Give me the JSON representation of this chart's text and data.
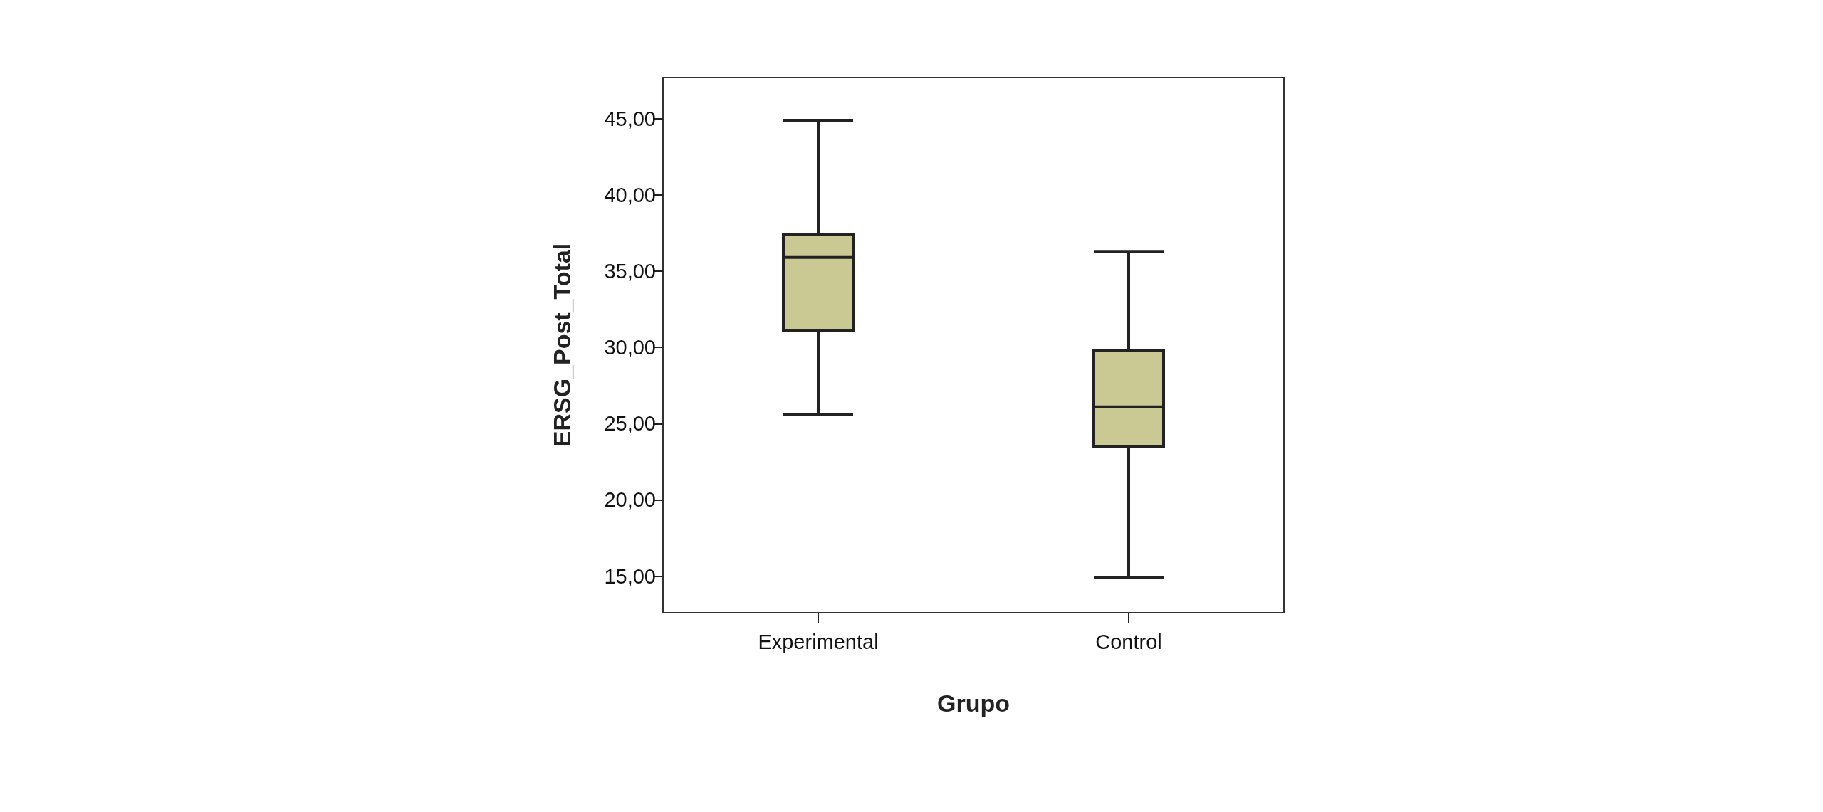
{
  "chart_data": {
    "type": "box",
    "xlabel": "Grupo",
    "ylabel": "ERSG_Post_Total",
    "categories": [
      "Experimental",
      "Control"
    ],
    "series": [
      {
        "color": "#cbc993",
        "boxes": [
          {
            "low": 25.6,
            "q1": 31.1,
            "median": 35.9,
            "q3": 37.4,
            "high": 44.9
          },
          {
            "low": 14.9,
            "q1": 23.5,
            "median": 26.1,
            "q3": 29.8,
            "high": 36.3
          }
        ]
      }
    ],
    "ylim": [
      12.6,
      47.7
    ],
    "yticks": [
      {
        "value": 15,
        "label": "15,00"
      },
      {
        "value": 20,
        "label": "20,00"
      },
      {
        "value": 25,
        "label": "25,00"
      },
      {
        "value": 30,
        "label": "30,00"
      },
      {
        "value": 35,
        "label": "35,00"
      },
      {
        "value": 40,
        "label": "40,00"
      },
      {
        "value": 45,
        "label": "45,00"
      }
    ]
  }
}
